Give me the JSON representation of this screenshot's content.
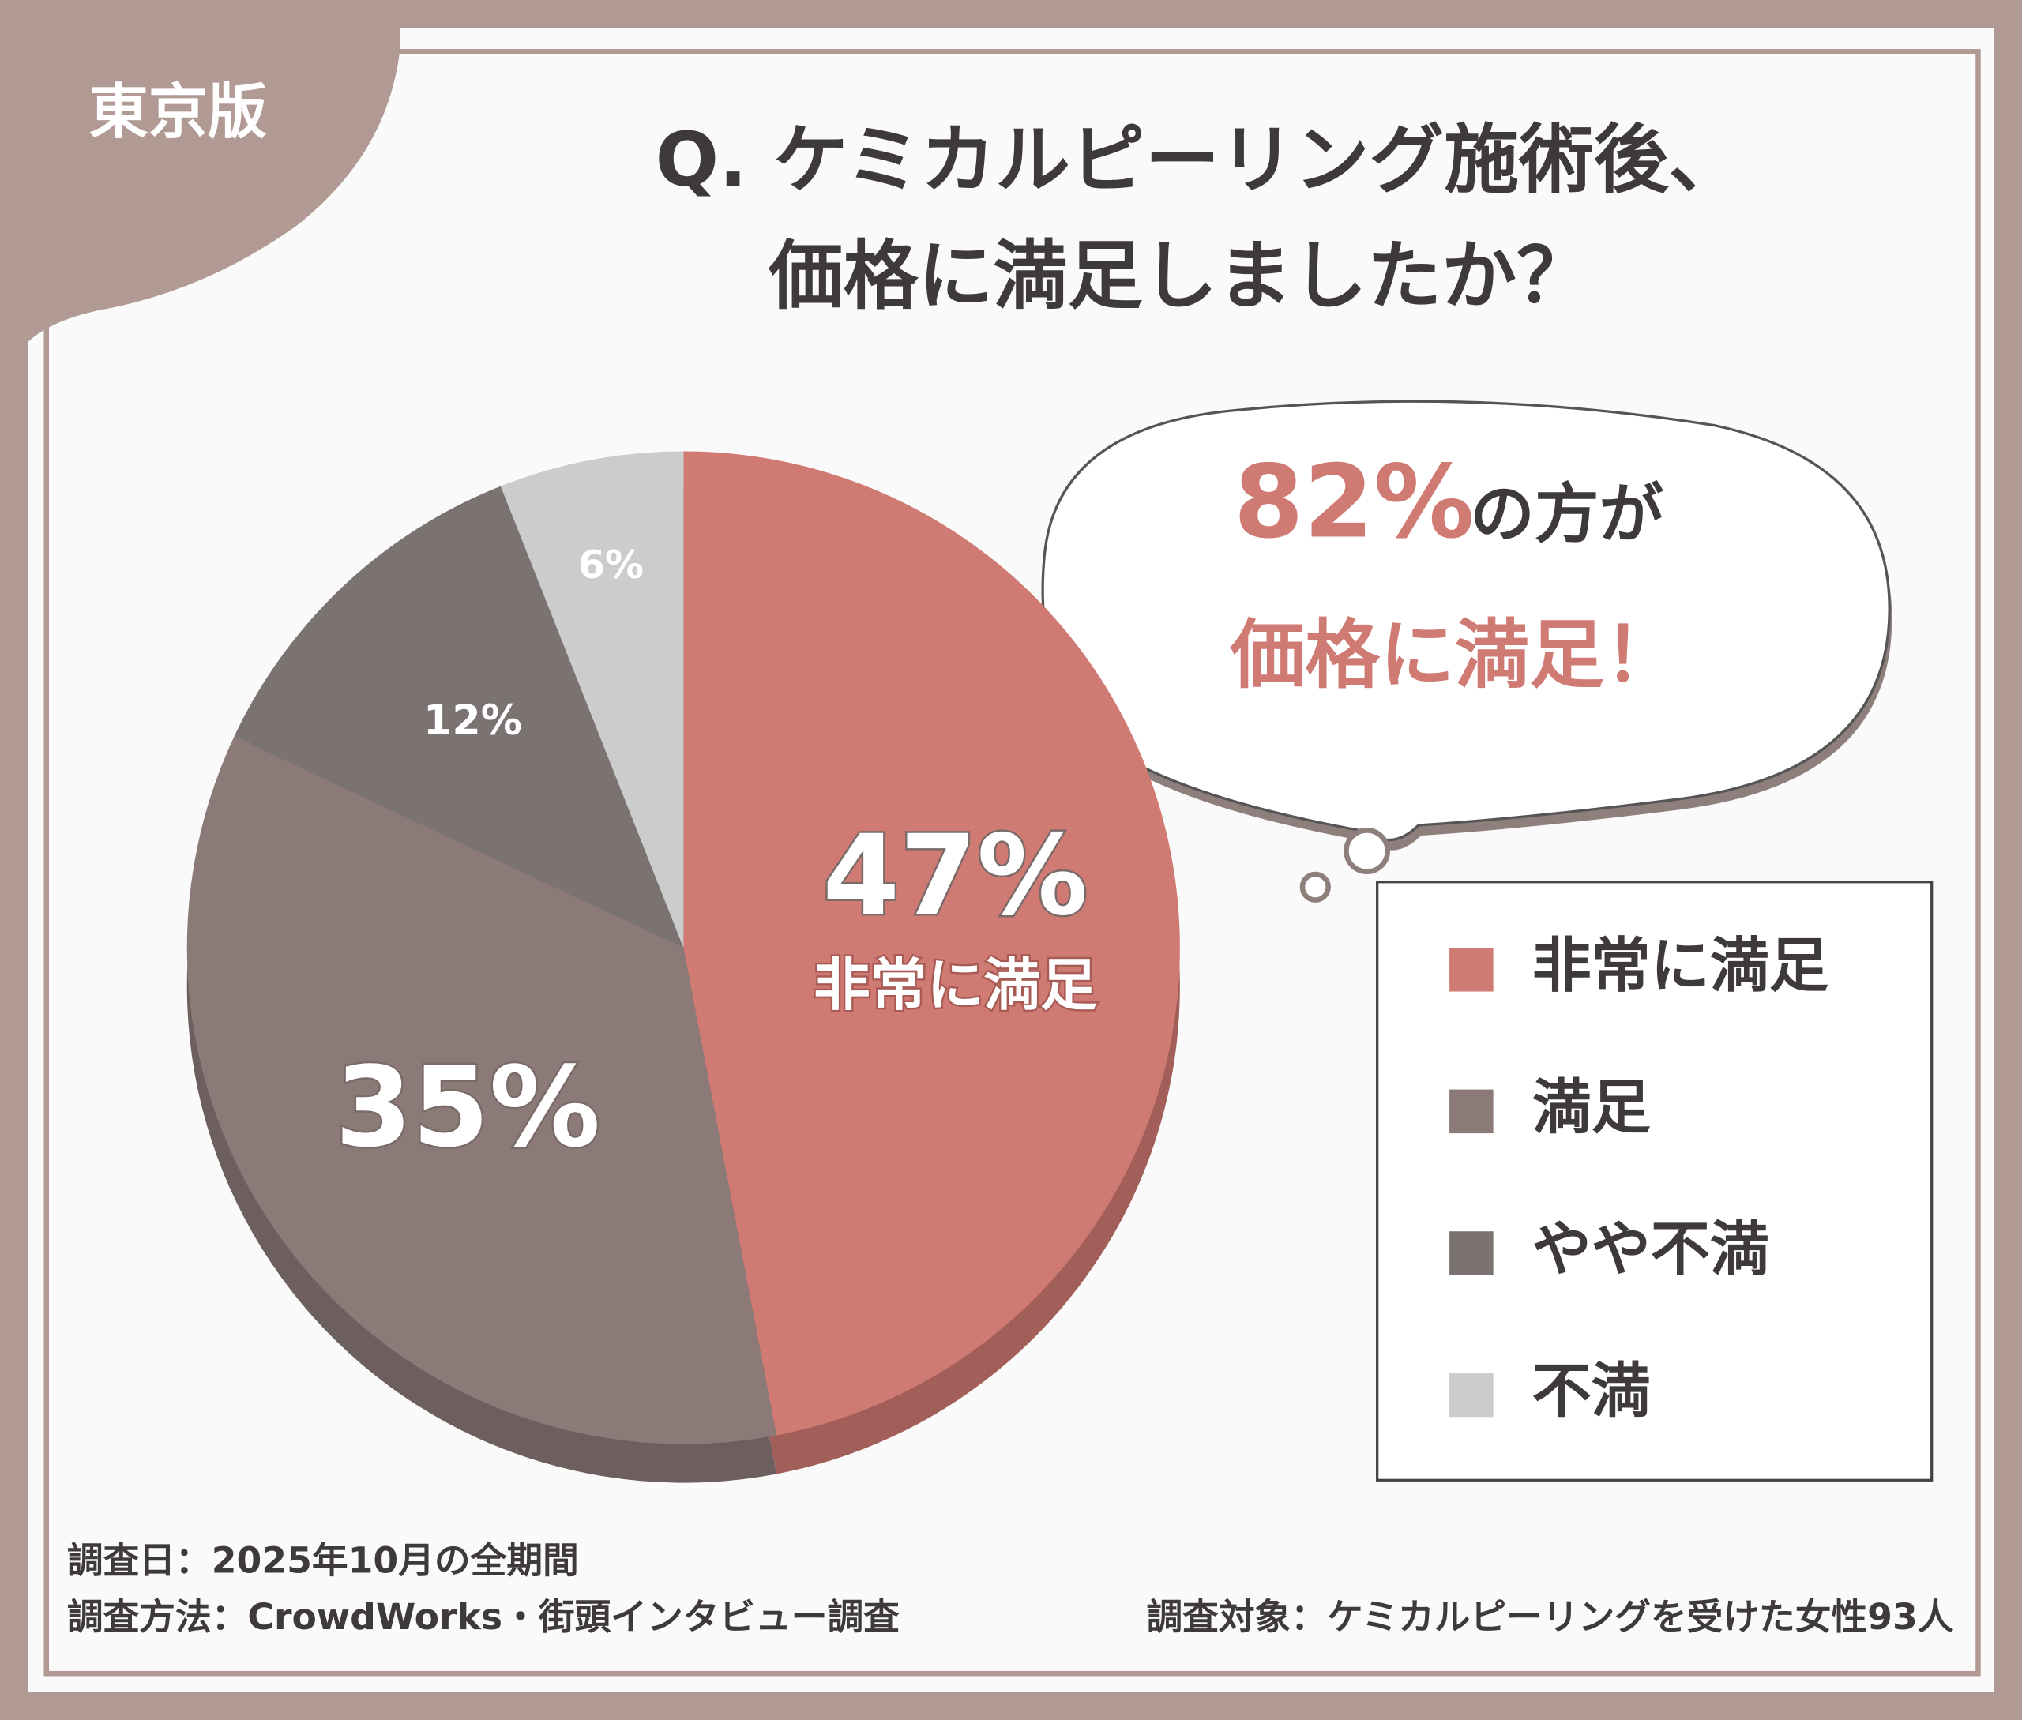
{
  "badge": "東京版",
  "chart_data": {
    "type": "pie",
    "title": [
      "Q. ケミカルピーリング施術後、",
      "価格に満足しましたか？"
    ],
    "categories": [
      "非常に満足",
      "満足",
      "やや不満",
      "不満"
    ],
    "values": [
      47,
      35,
      12,
      6
    ],
    "value_labels": [
      "47%",
      "35%",
      "12%",
      "6%"
    ],
    "colors": [
      "#d07a74",
      "#8c7a78",
      "#7a7372",
      "#cccccc"
    ],
    "legend": "right",
    "callout": {
      "value": 82,
      "value_label": "82%",
      "text": "の方が",
      "line2": "価格に満足！"
    }
  },
  "footer": [
    "調査日：2025年10月の全期間",
    "調査方法：CrowdWorks・街頭インタビュー調査",
    "調査対象：ケミカルピーリングを受けた女性93人"
  ]
}
